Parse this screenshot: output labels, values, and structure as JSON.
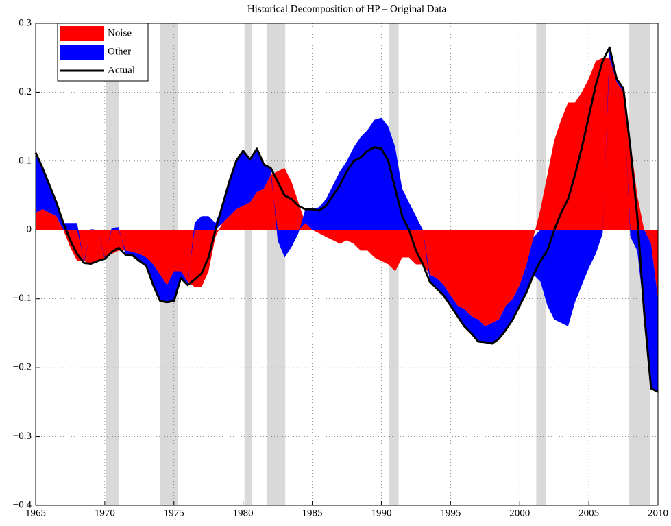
{
  "chart_data": {
    "type": "decomposition",
    "title": "Historical Decomposition of HP – Original Data",
    "x": [
      1965,
      1965.5,
      1966,
      1966.5,
      1967,
      1967.5,
      1968,
      1968.5,
      1969,
      1969.5,
      1970,
      1970.5,
      1971,
      1971.5,
      1972,
      1972.5,
      1973,
      1973.5,
      1974,
      1974.5,
      1975,
      1975.5,
      1976,
      1976.5,
      1977,
      1977.5,
      1978,
      1978.5,
      1979,
      1979.5,
      1980,
      1980.5,
      1981,
      1981.5,
      1982,
      1982.5,
      1983,
      1983.5,
      1984,
      1984.5,
      1985,
      1985.5,
      1986,
      1986.5,
      1987,
      1987.5,
      1988,
      1988.5,
      1989,
      1989.5,
      1990,
      1990.5,
      1991,
      1991.5,
      1992,
      1992.5,
      1993,
      1993.5,
      1994,
      1994.5,
      1995,
      1995.5,
      1996,
      1996.5,
      1997,
      1997.5,
      1998,
      1998.5,
      1999,
      1999.5,
      2000,
      2000.5,
      2001,
      2001.5,
      2002,
      2002.5,
      2003,
      2003.5,
      2004,
      2004.5,
      2005,
      2005.5,
      2006,
      2006.5,
      2007,
      2007.5,
      2008,
      2008.5,
      2009,
      2009.5,
      2010
    ],
    "series": [
      {
        "name": "Noise",
        "kind": "area",
        "color": "#ff0000",
        "values": [
          0.025,
          0.03,
          0.025,
          0.02,
          0.0,
          -0.025,
          -0.045,
          -0.045,
          -0.05,
          -0.045,
          -0.04,
          -0.035,
          -0.03,
          -0.03,
          -0.032,
          -0.035,
          -0.04,
          -0.05,
          -0.065,
          -0.08,
          -0.06,
          -0.06,
          -0.075,
          -0.083,
          -0.083,
          -0.06,
          -0.01,
          0.01,
          0.02,
          0.03,
          0.035,
          0.04,
          0.055,
          0.06,
          0.08,
          0.085,
          0.09,
          0.07,
          0.04,
          0.01,
          0.0,
          -0.005,
          -0.01,
          -0.015,
          -0.02,
          -0.015,
          -0.02,
          -0.03,
          -0.03,
          -0.04,
          -0.045,
          -0.05,
          -0.06,
          -0.04,
          -0.04,
          -0.05,
          -0.05,
          -0.065,
          -0.07,
          -0.08,
          -0.095,
          -0.11,
          -0.115,
          -0.125,
          -0.13,
          -0.14,
          -0.135,
          -0.13,
          -0.11,
          -0.1,
          -0.08,
          -0.05,
          -0.01,
          0.03,
          0.08,
          0.13,
          0.16,
          0.185,
          0.185,
          0.2,
          0.22,
          0.245,
          0.25,
          0.25,
          0.215,
          0.2,
          0.13,
          0.05,
          0.0,
          -0.02,
          -0.1
        ]
      },
      {
        "name": "Other",
        "kind": "area",
        "color": "#0000ff",
        "values": [
          0.087,
          0.06,
          0.04,
          0.02,
          0.01,
          0.01,
          0.01,
          -0.003,
          0.001,
          0,
          -0.002,
          0.003,
          0.004,
          -0.006,
          -0.005,
          -0.01,
          -0.012,
          -0.03,
          -0.038,
          -0.025,
          -0.043,
          -0.01,
          -0.005,
          0.011,
          0.02,
          0.02,
          0.01,
          0.025,
          0.05,
          0.07,
          0.08,
          0.062,
          0.063,
          0.035,
          0.01,
          -0.015,
          -0.04,
          -0.025,
          -0.005,
          0.02,
          0.03,
          0.033,
          0.045,
          0.065,
          0.085,
          0.1,
          0.12,
          0.135,
          0.145,
          0.16,
          0.163,
          0.15,
          0.12,
          0.06,
          0.04,
          0.02,
          0.0,
          -0.01,
          -0.015,
          -0.015,
          -0.015,
          -0.015,
          -0.025,
          -0.025,
          -0.032,
          -0.023,
          -0.03,
          -0.028,
          -0.035,
          -0.03,
          -0.03,
          -0.04,
          -0.055,
          -0.075,
          -0.11,
          -0.13,
          -0.135,
          -0.14,
          -0.105,
          -0.08,
          -0.055,
          -0.035,
          -0.005,
          0.015,
          0.005,
          0.005,
          -0.01,
          -0.03,
          -0.12,
          -0.21,
          -0.135
        ]
      },
      {
        "name": "Actual",
        "kind": "line",
        "color": "#000000",
        "values": [
          0.112,
          0.09,
          0.065,
          0.04,
          0.01,
          -0.015,
          -0.035,
          -0.048,
          -0.049,
          -0.045,
          -0.042,
          -0.032,
          -0.026,
          -0.036,
          -0.037,
          -0.045,
          -0.052,
          -0.08,
          -0.103,
          -0.105,
          -0.103,
          -0.07,
          -0.08,
          -0.072,
          -0.063,
          -0.04,
          0.0,
          0.035,
          0.07,
          0.1,
          0.115,
          0.102,
          0.118,
          0.095,
          0.09,
          0.07,
          0.05,
          0.045,
          0.035,
          0.03,
          0.03,
          0.028,
          0.035,
          0.05,
          0.065,
          0.085,
          0.1,
          0.105,
          0.115,
          0.12,
          0.118,
          0.1,
          0.06,
          0.02,
          0.0,
          -0.03,
          -0.05,
          -0.075,
          -0.085,
          -0.095,
          -0.11,
          -0.125,
          -0.14,
          -0.15,
          -0.162,
          -0.163,
          -0.165,
          -0.158,
          -0.145,
          -0.13,
          -0.11,
          -0.09,
          -0.065,
          -0.045,
          -0.03,
          0.0,
          0.025,
          0.045,
          0.08,
          0.12,
          0.165,
          0.21,
          0.245,
          0.265,
          0.22,
          0.205,
          0.12,
          0.02,
          -0.12,
          -0.23,
          -0.235
        ]
      }
    ],
    "recessions": [
      [
        1970.1,
        1971.0
      ],
      [
        1974.0,
        1975.3
      ],
      [
        1980.1,
        1980.65
      ],
      [
        1981.7,
        1983.05
      ],
      [
        1990.55,
        1991.25
      ],
      [
        2001.2,
        2001.9
      ],
      [
        2007.9,
        2009.45
      ]
    ],
    "recession_color": "#d9d9d9",
    "xlim": [
      1965,
      2010
    ],
    "ylim": [
      -0.4,
      0.3
    ],
    "xticks": [
      1965,
      1970,
      1975,
      1980,
      1985,
      1990,
      1995,
      2000,
      2005,
      2010
    ],
    "yticks": [
      {
        "value": -0.4,
        "label": "−0.4"
      },
      {
        "value": -0.3,
        "label": "−0.3"
      },
      {
        "value": -0.2,
        "label": "−0.2"
      },
      {
        "value": -0.1,
        "label": "−0.1"
      },
      0,
      0.1,
      0.2,
      0.3
    ],
    "grid": true,
    "legend": "upper-left"
  }
}
